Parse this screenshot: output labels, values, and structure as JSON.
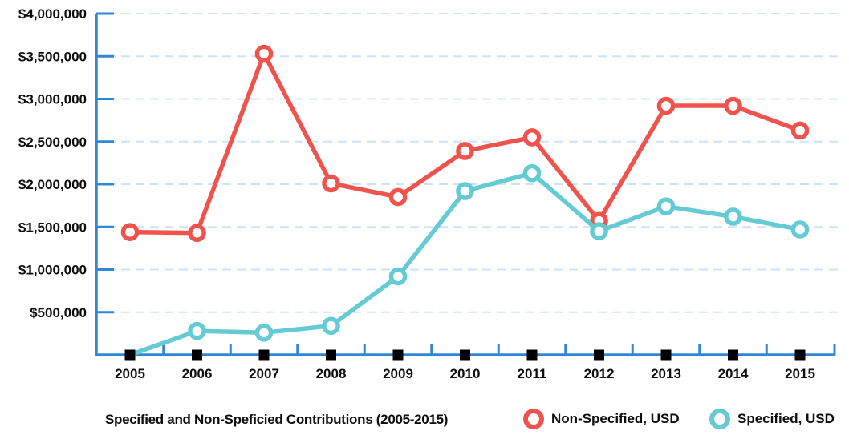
{
  "chart_data": {
    "type": "line",
    "title": "Specified and Non-Speficied Contributions (2005-2015)",
    "categories": [
      "2005",
      "2006",
      "2007",
      "2008",
      "2009",
      "2010",
      "2011",
      "2012",
      "2013",
      "2014",
      "2015"
    ],
    "series": [
      {
        "name": "Non-Specified, USD",
        "color": "#f0534d",
        "values": [
          1440000,
          1430000,
          3530000,
          2010000,
          1850000,
          2390000,
          2550000,
          1570000,
          2920000,
          2920000,
          2630000
        ]
      },
      {
        "name": "Specified, USD",
        "color": "#64cad4",
        "values": [
          0,
          280000,
          260000,
          340000,
          920000,
          1920000,
          2130000,
          1450000,
          1740000,
          1620000,
          1470000
        ],
        "hide_marker_at": [
          0
        ]
      }
    ],
    "ylim": [
      0,
      4000000
    ],
    "ytick_values": [
      4000000,
      3500000,
      3000000,
      2500000,
      2000000,
      1500000,
      1000000,
      500000
    ],
    "ytick_labels": [
      "$4,000,000",
      "$3,500,000",
      "$3,000,000",
      "$2,500,000",
      "$2,000,000",
      "$1,500,000",
      "$1,000,000",
      "$500,000"
    ],
    "xlabel": "",
    "ylabel": "",
    "grid": "horizontal-dashed",
    "legend_position": "bottom-right",
    "marker_style": "open-circle",
    "x_axis_marker_style": "black-square",
    "colors": {
      "axis": "#3187d6",
      "gridline": "#cde3f5",
      "x_square_marker": "#000000",
      "label_text": "#0d0d0d",
      "marker_fill": "#ffffff"
    }
  },
  "caption": {
    "title": "Specified and Non-Speficied Contributions (2005-2015)",
    "legend": [
      {
        "label": "Non-Specified, USD",
        "color": "#f0534d"
      },
      {
        "label": "Specified, USD",
        "color": "#64cad4"
      }
    ]
  }
}
